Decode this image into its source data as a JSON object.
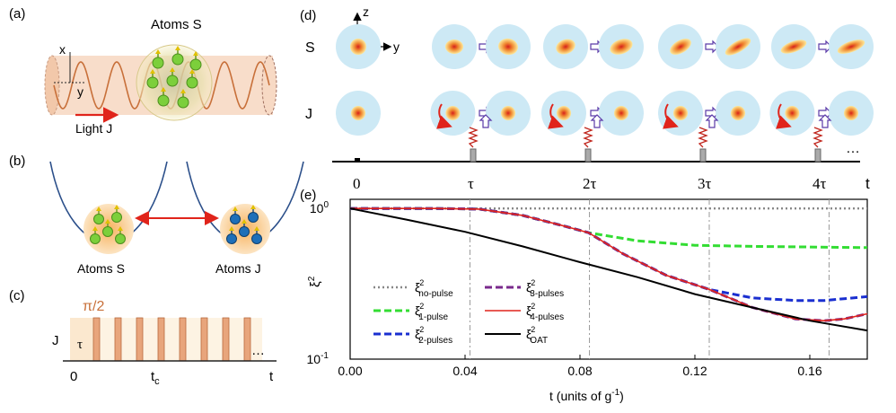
{
  "panel_labels": {
    "a": "(a)",
    "b": "(b)",
    "c": "(c)",
    "d": "(d)",
    "e": "(e)"
  },
  "panel_a": {
    "title": "Atoms S",
    "axis_x": "x",
    "axis_y": "y",
    "light_label": "Light J",
    "colors": {
      "beam": "#f7d9c4",
      "wave": "#c8703a",
      "arrow": "#e0241b"
    }
  },
  "panel_b": {
    "left_label": "Atoms S",
    "right_label": "Atoms J",
    "colors": {
      "well": "#2b4f8a",
      "cloud": "#f4a24a",
      "atom_s": "#7ccf3b",
      "atom_j": "#1e6fb8",
      "arrow": "#e0241b"
    }
  },
  "panel_c": {
    "pulse_label": "π/2",
    "row_label": "J",
    "tau_label": "τ",
    "origin": "0",
    "tc_main": "t",
    "tc_sub": "c",
    "t_label": "t",
    "ellipsis": "…",
    "pulse_count": 8,
    "colors": {
      "pulse": "#e8a57c",
      "shade": "#fbe8cf"
    }
  },
  "panel_d": {
    "row_s": "S",
    "row_j": "J",
    "z_label": "z",
    "y_label": "y",
    "ticks": [
      "0",
      "τ",
      "2τ",
      "3τ",
      "4τ"
    ],
    "t_label": "t",
    "ellipsis": "…",
    "colors": {
      "halo": "#cde9f5",
      "core": "#e8331f",
      "arrow": "#5b3aa8"
    }
  },
  "chart_data": {
    "type": "line",
    "xlabel": "t (units of g",
    "xlabel_sup": "-1",
    "xlabel_close": ")",
    "ylabel": "ξ",
    "ylabel_sup": "2",
    "ylog": true,
    "ylim": [
      0.1,
      1.15
    ],
    "xlim": [
      0.0,
      0.18
    ],
    "xticks": [
      "0.00",
      "0.04",
      "0.08",
      "0.12",
      "0.16"
    ],
    "xtick_values": [
      0.0,
      0.04,
      0.08,
      0.12,
      0.16
    ],
    "ytick_labels": [
      {
        "base": "10",
        "exp": "0"
      },
      {
        "base": "10",
        "exp": "-1"
      }
    ],
    "ytick_values": [
      1.0,
      0.1
    ],
    "vlines": [
      0.0417,
      0.0833,
      0.125,
      0.1667
    ],
    "legend_placement": "lower-left",
    "series": [
      {
        "name": "ξ",
        "sub": "no-pulse",
        "color": "#888888",
        "style": "dotted",
        "x": [
          0,
          0.18
        ],
        "y": [
          1.0,
          1.0
        ]
      },
      {
        "name": "ξ",
        "sub": "1-pulse",
        "color": "#33dd33",
        "style": "dashed",
        "x": [
          0,
          0.03,
          0.045,
          0.06,
          0.075,
          0.083,
          0.1,
          0.12,
          0.14,
          0.16,
          0.18
        ],
        "y": [
          1.0,
          1.0,
          0.99,
          0.9,
          0.76,
          0.69,
          0.61,
          0.57,
          0.56,
          0.555,
          0.55
        ]
      },
      {
        "name": "ξ",
        "sub": "2-pulses",
        "color": "#1a2fd0",
        "style": "dashed",
        "x": [
          0,
          0.03,
          0.045,
          0.06,
          0.075,
          0.083,
          0.095,
          0.11,
          0.125,
          0.14,
          0.155,
          0.165,
          0.18
        ],
        "y": [
          1.0,
          1.0,
          0.99,
          0.9,
          0.76,
          0.69,
          0.5,
          0.36,
          0.29,
          0.255,
          0.245,
          0.245,
          0.26
        ]
      },
      {
        "name": "ξ",
        "sub": "3-pulses",
        "color": "#7a2a8c",
        "style": "dashed",
        "x": [
          0,
          0.03,
          0.045,
          0.06,
          0.075,
          0.083,
          0.095,
          0.11,
          0.125,
          0.14,
          0.155,
          0.165,
          0.172,
          0.18
        ],
        "y": [
          1.0,
          1.0,
          0.99,
          0.9,
          0.76,
          0.69,
          0.5,
          0.36,
          0.29,
          0.22,
          0.185,
          0.18,
          0.185,
          0.2
        ]
      },
      {
        "name": "ξ",
        "sub": "4-pulses",
        "color": "#e0241b",
        "style": "solid",
        "x": [
          0,
          0.03,
          0.045,
          0.06,
          0.075,
          0.083,
          0.095,
          0.11,
          0.125,
          0.14,
          0.155,
          0.165,
          0.172,
          0.18
        ],
        "y": [
          1.0,
          1.0,
          0.99,
          0.9,
          0.76,
          0.69,
          0.5,
          0.36,
          0.29,
          0.22,
          0.185,
          0.18,
          0.185,
          0.2
        ]
      },
      {
        "name": "ξ",
        "sub": "OAT",
        "color": "#000000",
        "style": "solid",
        "x": [
          0,
          0.02,
          0.04,
          0.06,
          0.08,
          0.1,
          0.12,
          0.14,
          0.16,
          0.18
        ],
        "y": [
          1.0,
          0.84,
          0.7,
          0.56,
          0.44,
          0.35,
          0.27,
          0.22,
          0.18,
          0.155
        ]
      }
    ]
  }
}
